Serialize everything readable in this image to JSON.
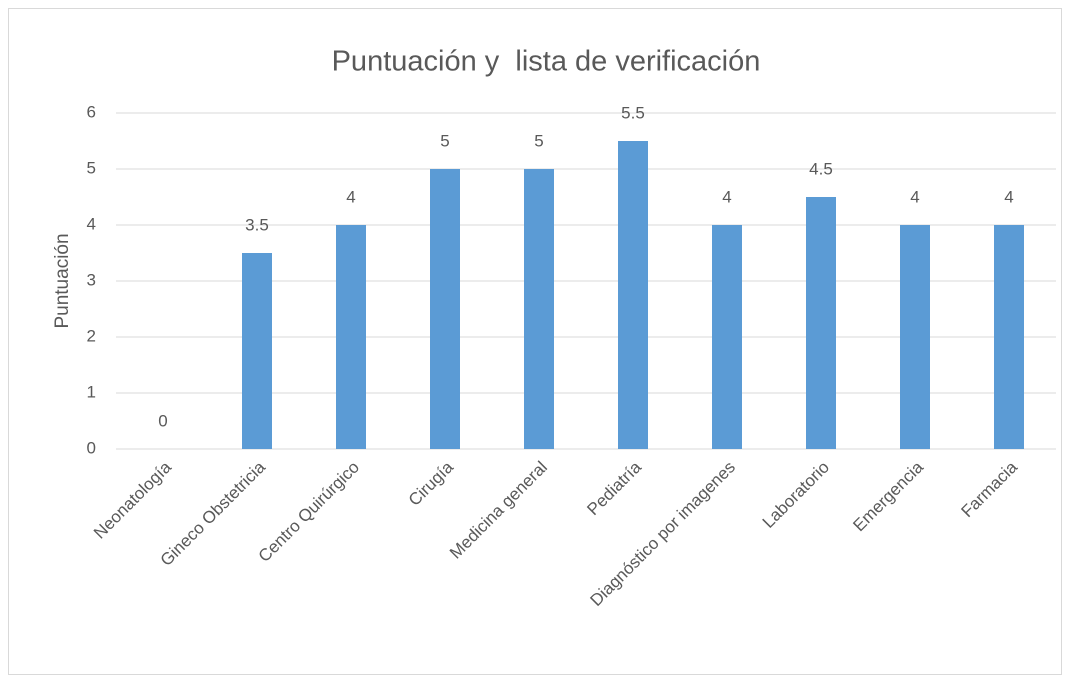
{
  "chart_data": {
    "type": "bar",
    "title": "Puntuación y  lista de verificación",
    "y_label": "Puntuación",
    "categories": [
      "Neonatología",
      "Gineco Obstetricia",
      "Centro Quirúrgico",
      "Cirugía",
      "Medicina general",
      "Pediatría",
      "Diagnóstico por imagenes",
      "Laboratorio",
      "Emergencia",
      "Farmacia"
    ],
    "values": [
      0,
      3.5,
      4,
      5,
      5,
      5.5,
      4,
      4.5,
      4,
      4
    ],
    "color": "#5b9bd5",
    "ylim": [
      0,
      6
    ],
    "yticks": [
      0,
      1,
      2,
      3,
      4,
      5,
      6
    ],
    "grid": true
  }
}
